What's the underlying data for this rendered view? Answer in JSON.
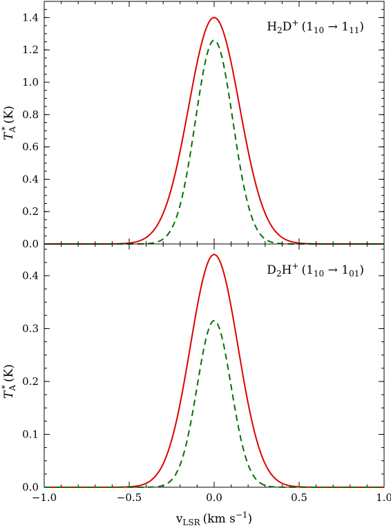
{
  "chart_data": [
    {
      "type": "line",
      "panel": "top",
      "annotation": {
        "main": "H",
        "sub1": "2",
        "main2": "D",
        "sup": "+",
        "trans_open": "(1",
        "trans_sub1": "10",
        "arrow": " → 1",
        "trans_sub2": "11",
        "trans_close": ")"
      },
      "ylabel": {
        "main": "T",
        "sub": "A",
        "sup": "*",
        "unit": "(K)"
      },
      "xlim": [
        -1.0,
        1.0
      ],
      "ylim": [
        0,
        1.5
      ],
      "yticks": [
        "0.0",
        "0.2",
        "0.4",
        "0.6",
        "0.8",
        "1.0",
        "1.2",
        "1.4"
      ],
      "yticks_values": [
        0.0,
        0.2,
        0.4,
        0.6,
        0.8,
        1.0,
        1.2,
        1.4
      ],
      "series": [
        {
          "style": "solid",
          "color": "#dd0000",
          "amplitude": 1.4,
          "center": 0.0,
          "sigma": 0.15
        },
        {
          "style": "dashed",
          "color": "#007000",
          "amplitude": 1.26,
          "center": 0.0,
          "sigma": 0.11
        }
      ]
    },
    {
      "type": "line",
      "panel": "bottom",
      "annotation": {
        "main": "D",
        "sub1": "2",
        "main2": "H",
        "sup": "+",
        "trans_open": "(1",
        "trans_sub1": "10",
        "arrow": " → 1",
        "trans_sub2": "01",
        "trans_close": ")"
      },
      "ylabel": {
        "main": "T",
        "sub": "A",
        "sup": "*",
        "unit": "(K)"
      },
      "xlabel": {
        "main": "v",
        "sub": "LSR",
        "unit_open": "(km s",
        "unit_sup": "−1",
        "unit_close": ")"
      },
      "xlim": [
        -1.0,
        1.0
      ],
      "ylim": [
        0,
        0.46
      ],
      "xticks": [
        "−1.0",
        "−0.5",
        "0.0",
        "0.5",
        "1.0"
      ],
      "xticks_values": [
        -1.0,
        -0.5,
        0.0,
        0.5,
        1.0
      ],
      "yticks": [
        "0.0",
        "0.1",
        "0.2",
        "0.3",
        "0.4"
      ],
      "yticks_values": [
        0.0,
        0.1,
        0.2,
        0.3,
        0.4
      ],
      "series": [
        {
          "style": "solid",
          "color": "#dd0000",
          "amplitude": 0.44,
          "center": 0.0,
          "sigma": 0.14
        },
        {
          "style": "dashed",
          "color": "#007000",
          "amplitude": 0.315,
          "center": 0.0,
          "sigma": 0.1
        }
      ]
    }
  ]
}
